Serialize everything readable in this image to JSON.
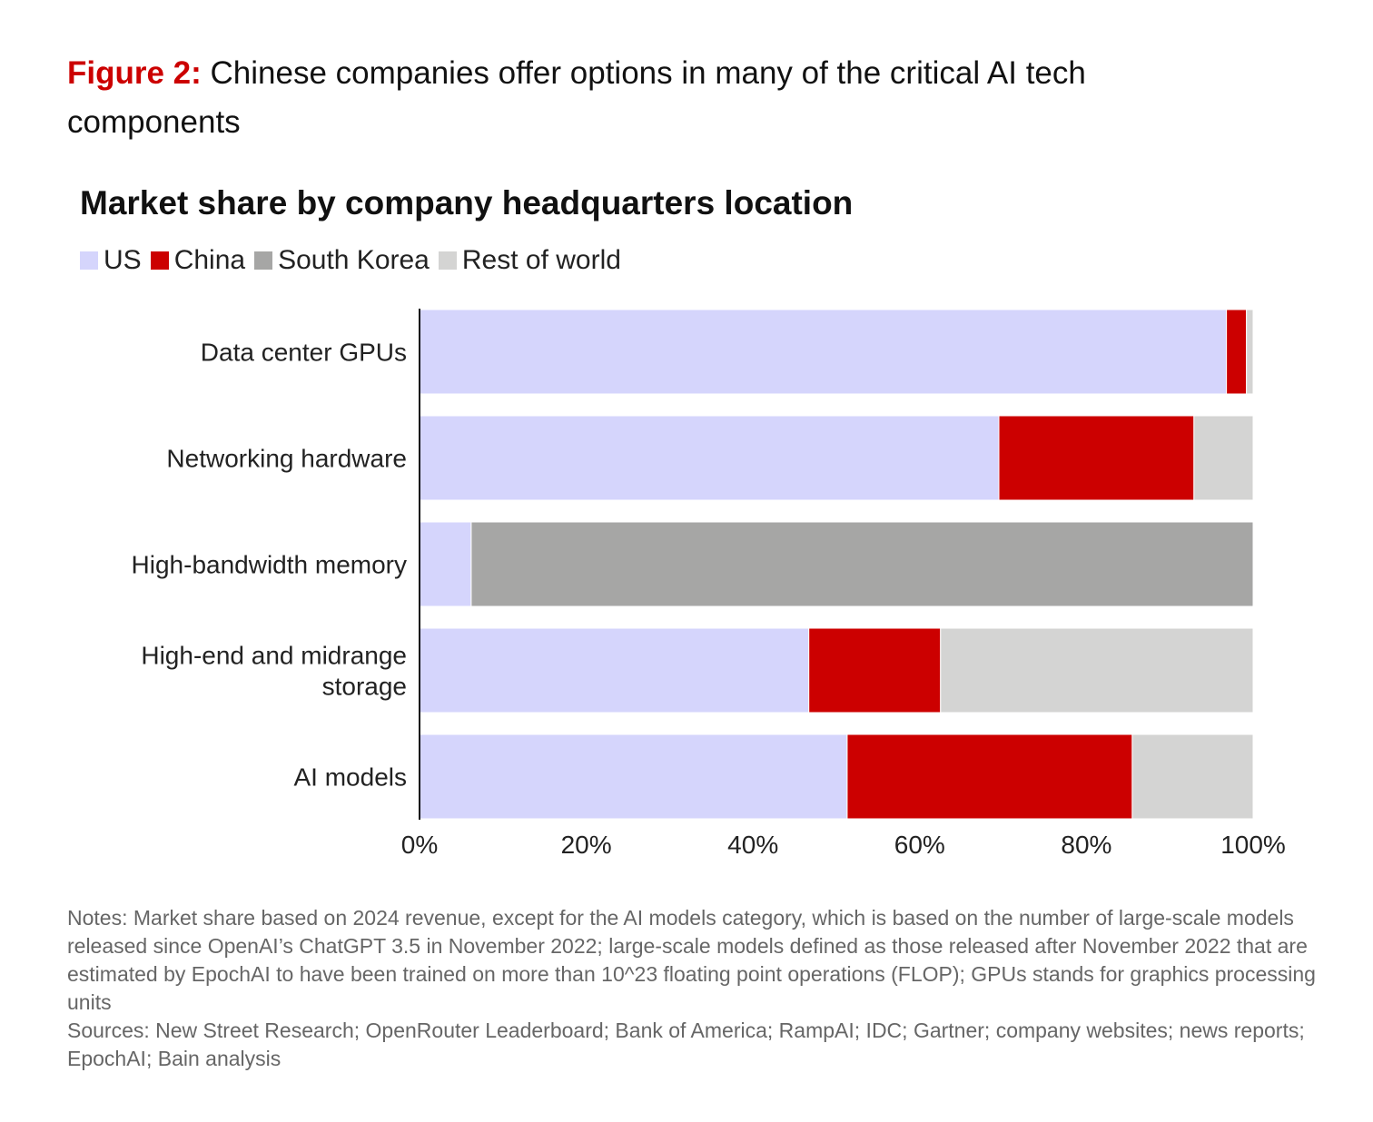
{
  "figure": {
    "label": "Figure 2:",
    "title": "Chinese companies offer options in many of the critical AI tech components"
  },
  "chart_data": {
    "type": "bar",
    "orientation": "horizontal",
    "stacked": true,
    "title": "Market share by company headquarters location",
    "categories": [
      [
        "Data center GPUs"
      ],
      [
        "Networking hardware"
      ],
      [
        "High-bandwidth memory"
      ],
      [
        "High-end and midrange",
        "storage"
      ],
      [
        "AI models"
      ]
    ],
    "series": [
      {
        "name": "US",
        "color": "#d5d5fc",
        "values": [
          96.8,
          69.5,
          6.2,
          46.7,
          51.3
        ]
      },
      {
        "name": "China",
        "color": "#cc0000",
        "values": [
          2.4,
          23.4,
          0,
          15.8,
          34.2
        ]
      },
      {
        "name": "South Korea",
        "color": "#a6a6a5",
        "values": [
          0,
          0,
          93.8,
          0,
          0
        ]
      },
      {
        "name": "Rest of world",
        "color": "#d4d4d3",
        "values": [
          0.8,
          7.1,
          0,
          37.5,
          14.5
        ]
      }
    ],
    "xlim": [
      0,
      100
    ],
    "xticks": [
      "0%",
      "20%",
      "40%",
      "60%",
      "80%",
      "100%"
    ],
    "xtick_values": [
      0,
      20,
      40,
      60,
      80,
      100
    ],
    "legend_position": "top-left",
    "grid": false
  },
  "notes": {
    "notes_text": "Notes: Market share based on 2024 revenue, except for the AI models category, which is based on the number of large-scale models released since OpenAI’s ChatGPT 3.5 in November 2022; large-scale models defined as those released after November 2022 that are estimated by EpochAI to have been trained on more than 10^23 floating point operations (FLOP); GPUs stands for graphics processing units",
    "sources_text": "Sources: New Street Research; OpenRouter Leaderboard; Bank of America; RampAI; IDC; Gartner; company websites; news reports; EpochAI; Bain analysis"
  }
}
